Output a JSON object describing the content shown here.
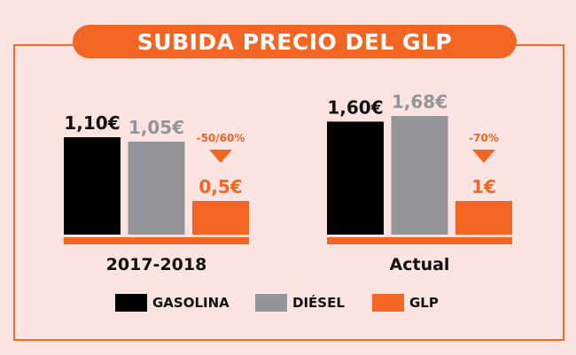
{
  "title": "SUBIDA PRECIO DEL GLP",
  "colors": {
    "background": "#fbe3e1",
    "accent": "#f26522",
    "gasolina": "#000000",
    "diesel": "#939598",
    "glp": "#f26522"
  },
  "chart_data": {
    "type": "bar",
    "title": "SUBIDA PRECIO DEL GLP",
    "categories": [
      "2017-2018",
      "Actual"
    ],
    "series": [
      {
        "name": "GASOLINA",
        "values": [
          1.1,
          1.6
        ],
        "labels": [
          "1,10€",
          "1,60€"
        ]
      },
      {
        "name": "DIÉSEL",
        "values": [
          1.05,
          1.68
        ],
        "labels": [
          "1,05€",
          "1,68€"
        ]
      },
      {
        "name": "GLP",
        "values": [
          0.5,
          1
        ],
        "labels": [
          "0,5€",
          "1€"
        ]
      }
    ],
    "annotations": [
      "-50/60%",
      "-70%"
    ],
    "legend_position": "bottom",
    "grid": false
  }
}
